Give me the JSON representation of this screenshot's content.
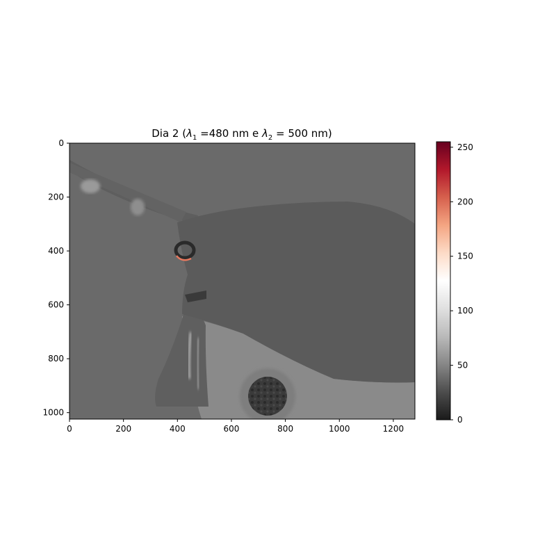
{
  "chart_data": {
    "type": "heatmap",
    "title": "Dia 2 (λ₁ =480 nm e λ₂ = 500 nm)",
    "title_parts": {
      "prefix": "Dia 2 (",
      "sym1": "λ",
      "sub1": "1",
      "mid": " =480 nm e ",
      "sym2": "λ",
      "sub2": "2",
      "suffix": " = 500 nm)"
    },
    "xlabel": "",
    "ylabel": "",
    "image_extent": {
      "x": [
        0,
        1280
      ],
      "y": [
        0,
        1024
      ]
    },
    "xlim": [
      0,
      1280
    ],
    "ylim": [
      1024,
      0
    ],
    "xticks": [
      0,
      200,
      400,
      600,
      800,
      1000,
      1200
    ],
    "yticks": [
      0,
      200,
      400,
      600,
      800,
      1000
    ],
    "colorbar": {
      "range": [
        0,
        255
      ],
      "ticks": [
        0,
        50,
        100,
        150,
        200,
        250
      ],
      "colormap": "RdGy_r",
      "colors": [
        "#1a1a1a",
        "#4d4d4d",
        "#878787",
        "#bababa",
        "#e0e0e0",
        "#ffffff",
        "#fddbc7",
        "#f4a582",
        "#d6604d",
        "#b2182b",
        "#67001f"
      ]
    },
    "background_value": 66,
    "regions": [
      {
        "name": "main body",
        "value": 58
      },
      {
        "name": "upper stalk",
        "value": 62
      },
      {
        "name": "lower stalk",
        "value": 58
      },
      {
        "name": "lower background",
        "value": 80
      },
      {
        "name": "dark ring",
        "value": 30
      },
      {
        "name": "speckled disc",
        "value": 35
      },
      {
        "name": "ring highlight",
        "value": 195
      }
    ]
  }
}
